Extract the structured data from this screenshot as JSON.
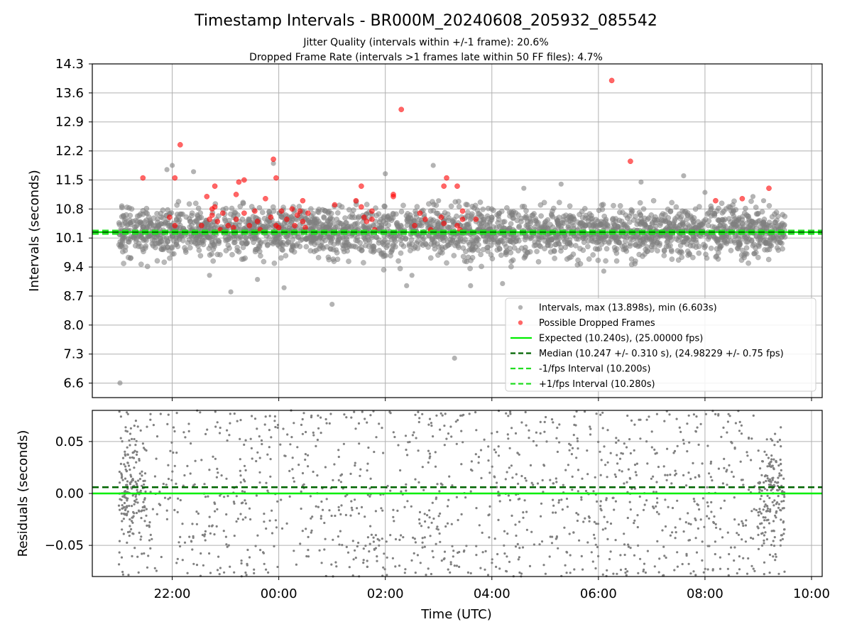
{
  "title": "Timestamp Intervals - BR000M_20240608_205932_085542",
  "subtitle_1": "Jitter Quality (intervals within +/-1 frame): 20.6%",
  "subtitle_2": "Dropped Frame Rate (intervals >1 frames late within 50 FF files): 4.7%",
  "colors": {
    "intervals": "#808080",
    "dropped": "#ff0000",
    "expected": "#00ee00",
    "median": "#006400",
    "fps_band": "#22dd22",
    "grid": "#b0b0b0"
  },
  "chart_data": [
    {
      "type": "scatter",
      "panel": "top",
      "ylabel": "Intervals (seconds)",
      "x_range_hours": [
        20.5,
        34.2
      ],
      "ylim": [
        6.25,
        14.3
      ],
      "y_ticks": [
        6.6,
        7.3,
        8.0,
        8.7,
        9.4,
        10.1,
        10.8,
        11.5,
        12.2,
        12.9,
        13.6,
        14.3
      ],
      "y_tick_labels": [
        "6.6",
        "7.3",
        "8.0",
        "8.7",
        "9.4",
        "10.1",
        "10.8",
        "11.5",
        "12.2",
        "12.9",
        "13.6",
        "14.3"
      ],
      "grid": true,
      "legend_position": "lower-right",
      "series": [
        {
          "name": "Intervals, max (13.898s), min (6.603s)",
          "kind": "points",
          "x_start_hour": 21.0,
          "x_end_hour": 33.5,
          "count": 2600,
          "center": 10.247,
          "spread": 0.31,
          "points": [
            [
              21.02,
              6.603
            ],
            [
              22.0,
              11.85
            ],
            [
              21.9,
              11.75
            ],
            [
              22.4,
              11.7
            ],
            [
              23.9,
              11.9
            ],
            [
              25.0,
              8.5
            ],
            [
              26.0,
              11.65
            ],
            [
              26.5,
              9.2
            ],
            [
              26.9,
              11.85
            ],
            [
              27.0,
              11.0
            ],
            [
              27.3,
              7.2
            ],
            [
              27.6,
              8.95
            ],
            [
              28.2,
              9.0
            ],
            [
              30.1,
              9.3
            ],
            [
              30.8,
              11.45
            ],
            [
              32.0,
              11.2
            ],
            [
              32.9,
              11.1
            ],
            [
              23.1,
              8.8
            ],
            [
              22.7,
              9.2
            ],
            [
              24.1,
              8.9
            ],
            [
              26.4,
              8.95
            ],
            [
              31.6,
              11.6
            ],
            [
              33.1,
              11.0
            ],
            [
              23.6,
              9.1
            ],
            [
              28.6,
              11.3
            ],
            [
              29.3,
              11.4
            ]
          ]
        },
        {
          "name": "Possible Dropped Frames",
          "kind": "points",
          "points": [
            [
              21.45,
              11.55
            ],
            [
              21.95,
              10.6
            ],
            [
              22.05,
              10.4
            ],
            [
              22.05,
              11.55
            ],
            [
              22.15,
              12.35
            ],
            [
              22.55,
              10.4
            ],
            [
              22.65,
              11.1
            ],
            [
              22.7,
              10.55
            ],
            [
              22.75,
              10.8
            ],
            [
              22.75,
              10.65
            ],
            [
              22.8,
              11.35
            ],
            [
              22.8,
              10.85
            ],
            [
              22.85,
              10.5
            ],
            [
              22.9,
              10.3
            ],
            [
              22.95,
              10.7
            ],
            [
              23.05,
              10.4
            ],
            [
              23.15,
              10.35
            ],
            [
              23.2,
              11.15
            ],
            [
              23.2,
              10.55
            ],
            [
              23.25,
              11.45
            ],
            [
              23.35,
              11.5
            ],
            [
              23.35,
              10.7
            ],
            [
              23.45,
              10.4
            ],
            [
              23.55,
              10.75
            ],
            [
              23.6,
              10.5
            ],
            [
              23.65,
              10.3
            ],
            [
              23.75,
              11.05
            ],
            [
              23.85,
              10.6
            ],
            [
              23.9,
              12.0
            ],
            [
              23.95,
              11.55
            ],
            [
              23.95,
              10.4
            ],
            [
              24.0,
              10.35
            ],
            [
              24.05,
              10.75
            ],
            [
              24.15,
              10.55
            ],
            [
              24.25,
              10.8
            ],
            [
              24.3,
              10.4
            ],
            [
              24.35,
              10.65
            ],
            [
              24.4,
              10.75
            ],
            [
              24.45,
              10.5
            ],
            [
              24.5,
              10.35
            ],
            [
              24.55,
              10.7
            ],
            [
              24.45,
              11.0
            ],
            [
              25.05,
              10.9
            ],
            [
              25.45,
              11.0
            ],
            [
              25.55,
              10.85
            ],
            [
              25.6,
              10.6
            ],
            [
              25.65,
              10.5
            ],
            [
              25.55,
              11.35
            ],
            [
              25.75,
              10.75
            ],
            [
              25.75,
              10.55
            ],
            [
              25.8,
              10.3
            ],
            [
              26.15,
              11.15
            ],
            [
              26.15,
              11.1
            ],
            [
              26.3,
              13.2
            ],
            [
              26.55,
              10.4
            ],
            [
              26.65,
              10.7
            ],
            [
              26.75,
              10.55
            ],
            [
              26.85,
              10.3
            ],
            [
              27.05,
              10.6
            ],
            [
              27.1,
              11.35
            ],
            [
              27.1,
              10.45
            ],
            [
              27.15,
              11.55
            ],
            [
              27.35,
              11.35
            ],
            [
              27.35,
              10.4
            ],
            [
              27.4,
              10.3
            ],
            [
              27.45,
              10.75
            ],
            [
              27.45,
              10.55
            ],
            [
              27.7,
              10.55
            ],
            [
              30.25,
              13.9
            ],
            [
              30.6,
              11.95
            ],
            [
              32.2,
              11.0
            ],
            [
              32.7,
              11.05
            ],
            [
              33.2,
              11.3
            ]
          ]
        },
        {
          "name": "Expected (10.240s), (25.00000 fps)",
          "kind": "hline",
          "value": 10.24,
          "style": "solid"
        },
        {
          "name": "Median (10.247 +/- 0.310 s), (24.98229 +/- 0.75 fps)",
          "kind": "hline",
          "value": 10.247,
          "style": "dashed"
        },
        {
          "name": "-1/fps Interval (10.200s)",
          "kind": "hline",
          "value": 10.2,
          "style": "dashed"
        },
        {
          "name": "+1/fps Interval (10.280s)",
          "kind": "hline",
          "value": 10.28,
          "style": "dashed"
        }
      ]
    },
    {
      "type": "scatter",
      "panel": "bottom",
      "ylabel": "Residuals (seconds)",
      "xlabel": "Time (UTC)",
      "x_range_hours": [
        20.5,
        34.2
      ],
      "x_ticks_hours": [
        22,
        24,
        26,
        28,
        30,
        32,
        34
      ],
      "x_tick_labels": [
        "22:00",
        "00:00",
        "02:00",
        "04:00",
        "06:00",
        "08:00",
        "10:00"
      ],
      "ylim": [
        -0.08,
        0.08
      ],
      "y_ticks": [
        -0.05,
        0.0,
        0.05
      ],
      "y_tick_labels": [
        "−0.05",
        "0.00",
        "0.05"
      ],
      "grid": true,
      "series": [
        {
          "name": "Residuals",
          "kind": "points",
          "x_start_hour": 21.0,
          "x_end_hour": 33.5,
          "count": 1300,
          "range": [
            -0.08,
            0.08
          ]
        },
        {
          "name": "Expected",
          "kind": "hline",
          "value": 0.0,
          "style": "solid"
        },
        {
          "name": "Median",
          "kind": "hline",
          "value": 0.006,
          "style": "dashed"
        }
      ]
    }
  ]
}
